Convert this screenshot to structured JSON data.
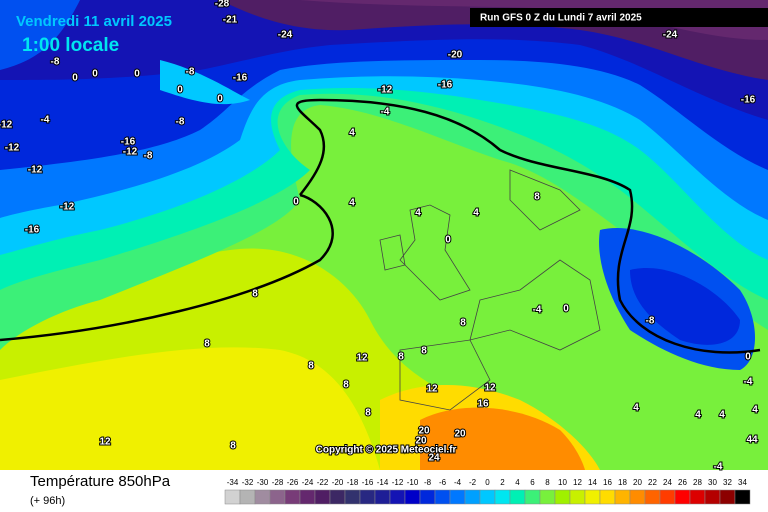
{
  "header": {
    "date": "Vendredi 11 avril 2025",
    "time": "1:00 locale",
    "run": "Run GFS 0 Z du Lundi 7 avril 2025",
    "copyright": "Copyright © 2025 Meteociel.fr"
  },
  "footer": {
    "parameter": "Température 850hPa",
    "lead": "(+ 96h)"
  },
  "legend": {
    "values": [
      -34,
      -32,
      -30,
      -28,
      -26,
      -24,
      -22,
      -20,
      -18,
      -16,
      -14,
      -12,
      -10,
      -8,
      -6,
      -4,
      -2,
      0,
      2,
      4,
      6,
      8,
      10,
      12,
      14,
      16,
      18,
      20,
      22,
      24,
      26,
      28,
      30,
      32,
      34
    ],
    "colors": [
      "#d2d2d2",
      "#b4b4b4",
      "#a08ca0",
      "#8c648c",
      "#783c78",
      "#64286e",
      "#501e64",
      "#3c2864",
      "#32326e",
      "#282882",
      "#1e1e96",
      "#1414b4",
      "#0000c8",
      "#0028dc",
      "#0050f0",
      "#0078ff",
      "#00a0ff",
      "#00c8ff",
      "#00e6f0",
      "#00f0b4",
      "#3cf078",
      "#78f03c",
      "#a0f000",
      "#c8f000",
      "#f0f000",
      "#ffdc00",
      "#ffb400",
      "#ff8c00",
      "#ff6400",
      "#ff3c00",
      "#ff0000",
      "#dc0000",
      "#b40000",
      "#8c0000",
      "#000000"
    ]
  },
  "contours": {
    "labels": [
      -28,
      -21,
      -24,
      -24,
      -20,
      -16,
      -16,
      -16,
      -12,
      -12,
      -12,
      -12,
      -12,
      -16,
      -16,
      -12,
      -8,
      -8,
      -8,
      -8,
      -4,
      -4,
      0,
      0,
      0,
      0,
      0,
      0,
      4,
      4,
      4,
      4,
      0,
      8,
      8,
      8,
      8,
      8,
      8,
      8,
      12,
      12,
      8,
      8,
      8,
      -8,
      0,
      -4,
      12,
      12,
      16,
      20,
      20,
      20,
      24,
      0,
      -4,
      4,
      4,
      4,
      4,
      44,
      -4
    ]
  }
}
